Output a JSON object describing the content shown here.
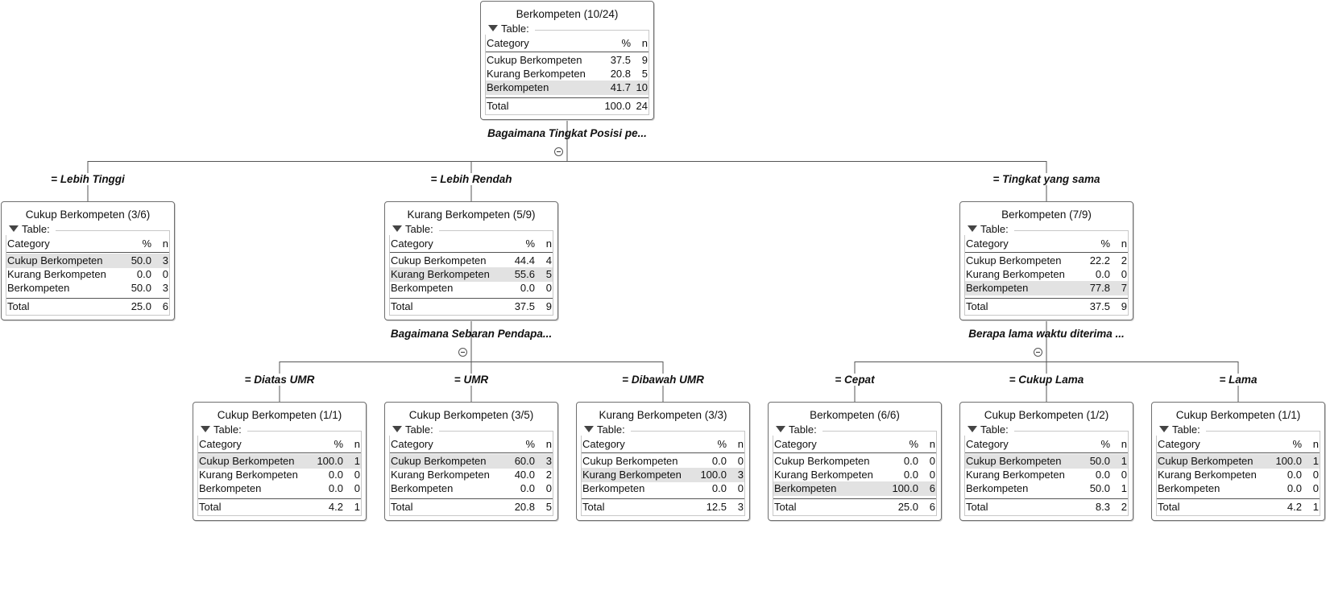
{
  "headers": {
    "category": "Category",
    "pct": "%",
    "n": "n",
    "table_label": "Table:",
    "total_label": "Total"
  },
  "nodes": [
    {
      "id": "root",
      "title": "Berkompeten (10/24)",
      "hl": 2,
      "rows": [
        {
          "cat": "Cukup Berkompeten",
          "pct": "37.5",
          "n": "9"
        },
        {
          "cat": "Kurang Berkompeten",
          "pct": "20.8",
          "n": "5"
        },
        {
          "cat": "Berkompeten",
          "pct": "41.7",
          "n": "10"
        }
      ],
      "total": {
        "pct": "100.0",
        "n": "24"
      }
    },
    {
      "id": "lebih-tinggi",
      "title": "Cukup Berkompeten (3/6)",
      "hl": 0,
      "rows": [
        {
          "cat": "Cukup Berkompeten",
          "pct": "50.0",
          "n": "3"
        },
        {
          "cat": "Kurang Berkompeten",
          "pct": "0.0",
          "n": "0"
        },
        {
          "cat": "Berkompeten",
          "pct": "50.0",
          "n": "3"
        }
      ],
      "total": {
        "pct": "25.0",
        "n": "6"
      }
    },
    {
      "id": "lebih-rendah",
      "title": "Kurang Berkompeten (5/9)",
      "hl": 1,
      "rows": [
        {
          "cat": "Cukup Berkompeten",
          "pct": "44.4",
          "n": "4"
        },
        {
          "cat": "Kurang Berkompeten",
          "pct": "55.6",
          "n": "5"
        },
        {
          "cat": "Berkompeten",
          "pct": "0.0",
          "n": "0"
        }
      ],
      "total": {
        "pct": "37.5",
        "n": "9"
      }
    },
    {
      "id": "tingkat-sama",
      "title": "Berkompeten (7/9)",
      "hl": 2,
      "rows": [
        {
          "cat": "Cukup Berkompeten",
          "pct": "22.2",
          "n": "2"
        },
        {
          "cat": "Kurang Berkompeten",
          "pct": "0.0",
          "n": "0"
        },
        {
          "cat": "Berkompeten",
          "pct": "77.8",
          "n": "7"
        }
      ],
      "total": {
        "pct": "37.5",
        "n": "9"
      }
    },
    {
      "id": "diatas-umr",
      "title": "Cukup Berkompeten (1/1)",
      "hl": 0,
      "rows": [
        {
          "cat": "Cukup Berkompeten",
          "pct": "100.0",
          "n": "1"
        },
        {
          "cat": "Kurang Berkompeten",
          "pct": "0.0",
          "n": "0"
        },
        {
          "cat": "Berkompeten",
          "pct": "0.0",
          "n": "0"
        }
      ],
      "total": {
        "pct": "4.2",
        "n": "1"
      }
    },
    {
      "id": "umr",
      "title": "Cukup Berkompeten (3/5)",
      "hl": 0,
      "rows": [
        {
          "cat": "Cukup Berkompeten",
          "pct": "60.0",
          "n": "3"
        },
        {
          "cat": "Kurang Berkompeten",
          "pct": "40.0",
          "n": "2"
        },
        {
          "cat": "Berkompeten",
          "pct": "0.0",
          "n": "0"
        }
      ],
      "total": {
        "pct": "20.8",
        "n": "5"
      }
    },
    {
      "id": "dibawah-umr",
      "title": "Kurang Berkompeten (3/3)",
      "hl": 1,
      "rows": [
        {
          "cat": "Cukup Berkompeten",
          "pct": "0.0",
          "n": "0"
        },
        {
          "cat": "Kurang Berkompeten",
          "pct": "100.0",
          "n": "3"
        },
        {
          "cat": "Berkompeten",
          "pct": "0.0",
          "n": "0"
        }
      ],
      "total": {
        "pct": "12.5",
        "n": "3"
      }
    },
    {
      "id": "cepat",
      "title": "Berkompeten (6/6)",
      "hl": 2,
      "rows": [
        {
          "cat": "Cukup Berkompeten",
          "pct": "0.0",
          "n": "0"
        },
        {
          "cat": "Kurang Berkompeten",
          "pct": "0.0",
          "n": "0"
        },
        {
          "cat": "Berkompeten",
          "pct": "100.0",
          "n": "6"
        }
      ],
      "total": {
        "pct": "25.0",
        "n": "6"
      }
    },
    {
      "id": "cukup-lama",
      "title": "Cukup Berkompeten (1/2)",
      "hl": 0,
      "rows": [
        {
          "cat": "Cukup Berkompeten",
          "pct": "50.0",
          "n": "1"
        },
        {
          "cat": "Kurang Berkompeten",
          "pct": "0.0",
          "n": "0"
        },
        {
          "cat": "Berkompeten",
          "pct": "50.0",
          "n": "1"
        }
      ],
      "total": {
        "pct": "8.3",
        "n": "2"
      }
    },
    {
      "id": "lama",
      "title": "Cukup Berkompeten (1/1)",
      "hl": 0,
      "rows": [
        {
          "cat": "Cukup Berkompeten",
          "pct": "100.0",
          "n": "1"
        },
        {
          "cat": "Kurang Berkompeten",
          "pct": "0.0",
          "n": "0"
        },
        {
          "cat": "Berkompeten",
          "pct": "0.0",
          "n": "0"
        }
      ],
      "total": {
        "pct": "4.2",
        "n": "1"
      }
    }
  ],
  "splits": [
    {
      "id": "root",
      "label": "Bagaimana Tingkat Posisi pe..."
    },
    {
      "id": "lebih-rendah",
      "label": "Bagaimana Sebaran Pendapa..."
    },
    {
      "id": "tingkat-sama",
      "label": "Berapa lama waktu diterima ..."
    }
  ],
  "edges": [
    {
      "id": "lebih-tinggi",
      "label": "= Lebih Tinggi"
    },
    {
      "id": "lebih-rendah",
      "label": "= Lebih Rendah"
    },
    {
      "id": "tingkat-sama",
      "label": "= Tingkat yang sama"
    },
    {
      "id": "diatas-umr",
      "label": "= Diatas UMR"
    },
    {
      "id": "umr",
      "label": "= UMR"
    },
    {
      "id": "dibawah-umr",
      "label": "= Dibawah UMR"
    },
    {
      "id": "cepat",
      "label": "= Cepat"
    },
    {
      "id": "cukup-lama",
      "label": "= Cukup Lama"
    },
    {
      "id": "lama",
      "label": "= Lama"
    }
  ]
}
